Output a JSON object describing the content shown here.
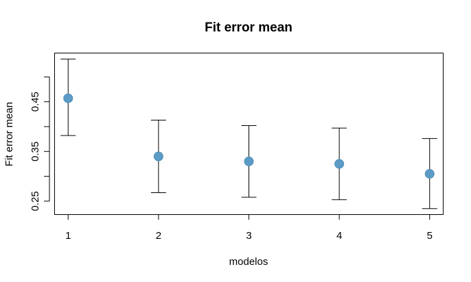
{
  "chart_data": {
    "type": "scatter",
    "title": "Fit error mean",
    "xlabel": "modelos",
    "ylabel": "Fit error mean",
    "x": [
      1,
      2,
      3,
      4,
      5
    ],
    "values": [
      0.457,
      0.34,
      0.33,
      0.325,
      0.305
    ],
    "lower": [
      0.382,
      0.267,
      0.258,
      0.253,
      0.235
    ],
    "upper": [
      0.536,
      0.413,
      0.402,
      0.397,
      0.376
    ],
    "xticks": [
      "1",
      "2",
      "3",
      "4",
      "5"
    ],
    "yticks": [
      "0.25",
      "0.35",
      "0.45"
    ],
    "ytick_values": [
      0.25,
      0.35,
      0.45
    ],
    "xlim": [
      0.85,
      5.15
    ],
    "ylim": [
      0.223,
      0.548
    ],
    "grid": false,
    "legend": "none",
    "point_color": "#5b9bc5"
  }
}
